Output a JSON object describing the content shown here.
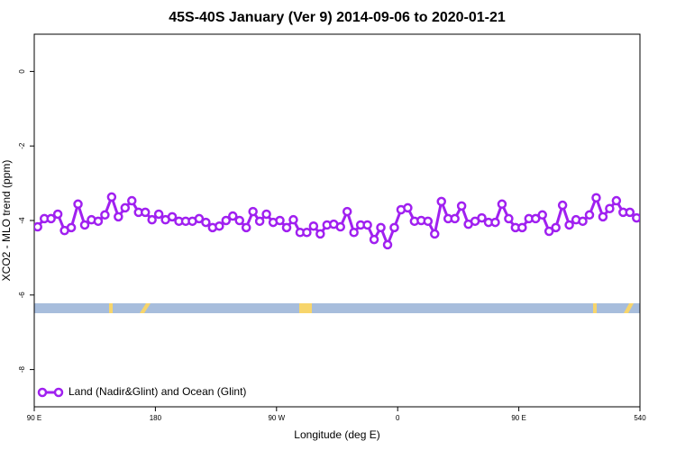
{
  "chart_data": {
    "type": "line",
    "title": "45S-40S January (Ver 9)   2014-09-06 to 2020-01-21",
    "xlabel": "Longitude (deg E)",
    "ylabel": "XCO2 - MLO trend (ppm)",
    "xlim": [
      90,
      540
    ],
    "ylim": [
      -9,
      1
    ],
    "xticks": [
      {
        "value": 90,
        "label": "90 E"
      },
      180,
      {
        "value": 270,
        "label": "90 W"
      },
      {
        "value": 360,
        "label": "0"
      },
      {
        "value": 450,
        "label": "90 E"
      },
      540
    ],
    "yticks": [
      0,
      -2,
      -4,
      -6,
      -8
    ],
    "legend": "bottom-left",
    "x": [
      92.5,
      97.5,
      102.5,
      107.5,
      112.5,
      117.5,
      122.5,
      127.5,
      132.5,
      137.5,
      142.5,
      147.5,
      152.5,
      157.5,
      162.5,
      167.5,
      172.5,
      177.5,
      182.5,
      187.5,
      192.5,
      197.5,
      202.5,
      207.5,
      212.5,
      217.5,
      222.5,
      227.5,
      232.5,
      237.5,
      242.5,
      247.5,
      252.5,
      257.5,
      262.5,
      267.5,
      272.5,
      277.5,
      282.5,
      287.5,
      292.5,
      297.5,
      302.5,
      307.5,
      312.5,
      317.5,
      322.5,
      327.5,
      332.5,
      337.5,
      342.5,
      347.5,
      352.5,
      357.5,
      362.5,
      367.5,
      372.5,
      377.5,
      382.5,
      387.5,
      392.5,
      397.5,
      402.5,
      407.5,
      412.5,
      417.5,
      422.5,
      427.5,
      432.5,
      437.5,
      442.5,
      447.5,
      452.5,
      457.5,
      462.5,
      467.5,
      472.5,
      477.5,
      482.5,
      487.5,
      492.5,
      497.5,
      502.5,
      507.5,
      512.5,
      517.5,
      522.5,
      527.5,
      532.5,
      537.5,
      542.5
    ],
    "series": [
      {
        "name": "Land (Nadir&Glint) and Ocean (Glint)",
        "color": "#a020f0",
        "values": [
          -4.17,
          -3.95,
          -3.95,
          -3.83,
          -4.27,
          -4.19,
          -3.56,
          -4.12,
          -3.98,
          -4.02,
          -3.85,
          -3.37,
          -3.9,
          -3.66,
          -3.47,
          -3.78,
          -3.78,
          -3.98,
          -3.83,
          -3.98,
          -3.9,
          -4.02,
          -4.02,
          -4.02,
          -3.95,
          -4.05,
          -4.19,
          -4.15,
          -4.0,
          -3.88,
          -4.0,
          -4.19,
          -3.76,
          -4.02,
          -3.83,
          -4.05,
          -4.0,
          -4.19,
          -3.98,
          -4.32,
          -4.32,
          -4.15,
          -4.36,
          -4.12,
          -4.1,
          -4.17,
          -3.76,
          -4.32,
          -4.12,
          -4.12,
          -4.51,
          -4.19,
          -4.65,
          -4.19,
          -3.71,
          -3.66,
          -4.02,
          -4.0,
          -4.02,
          -4.36,
          -3.49,
          -3.95,
          -3.95,
          -3.61,
          -4.1,
          -4.02,
          -3.93,
          -4.05,
          -4.05,
          -3.56,
          -3.95,
          -4.19,
          -4.19,
          -3.95,
          -3.95,
          -3.85,
          -4.29,
          -4.19,
          -3.59,
          -4.12,
          -3.98,
          -4.02,
          -3.85,
          -3.39,
          -3.9,
          -3.68,
          -3.47,
          -3.78,
          -3.78,
          -3.93,
          -3.93
        ]
      }
    ]
  }
}
